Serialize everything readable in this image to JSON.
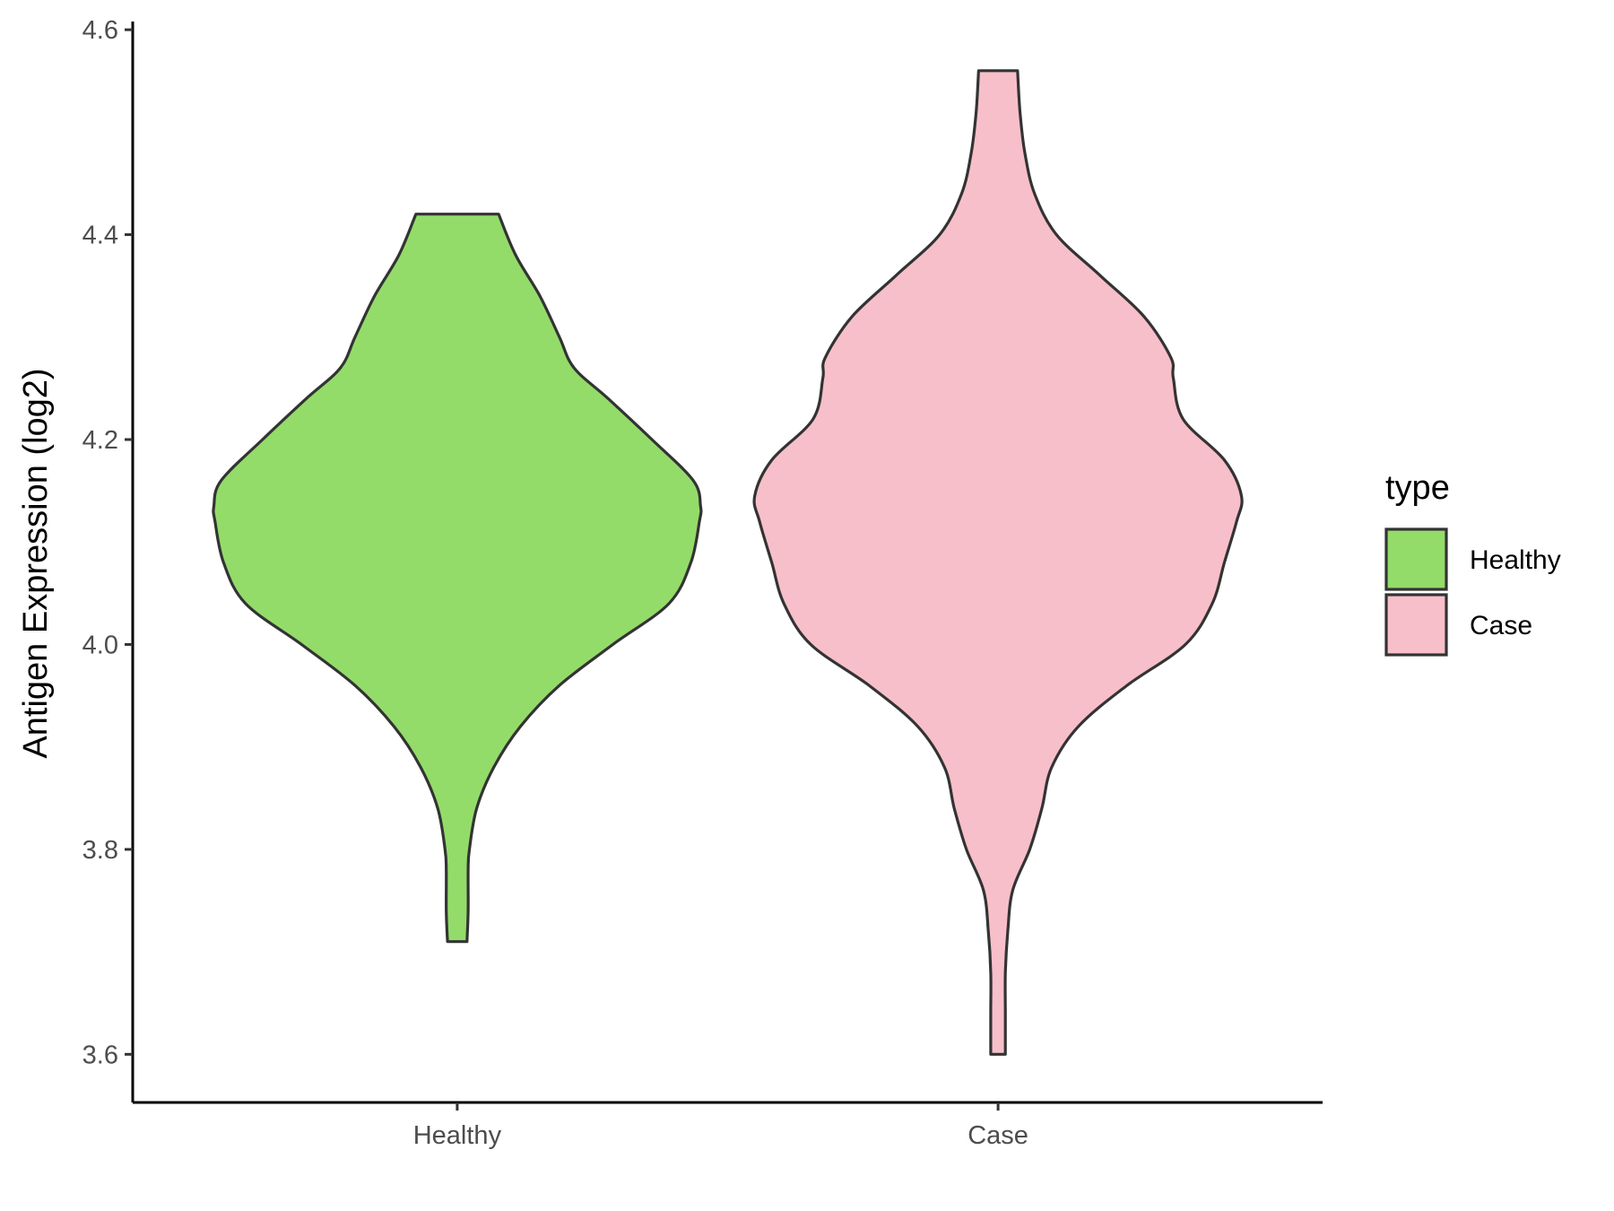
{
  "chart_data": {
    "type": "violin",
    "title": "",
    "xlabel": "",
    "ylabel": "Antigen Expression (log2)",
    "ylim": [
      3.553,
      4.608
    ],
    "yticks": [
      3.6,
      3.8,
      4.0,
      4.2,
      4.4,
      4.6
    ],
    "ytick_labels": [
      "3.6",
      "3.8",
      "4.0",
      "4.2",
      "4.4",
      "4.6"
    ],
    "categories": [
      "Healthy",
      "Case"
    ],
    "grid": false,
    "legend": {
      "title": "type",
      "position": "right",
      "entries": [
        "Healthy",
        "Case"
      ]
    },
    "series": [
      {
        "name": "Healthy",
        "color": "#93dc6a",
        "min": 3.71,
        "max": 4.42,
        "density_profile": [
          [
            3.71,
            0.04
          ],
          [
            3.74,
            0.045
          ],
          [
            3.78,
            0.045
          ],
          [
            3.8,
            0.05
          ],
          [
            3.84,
            0.08
          ],
          [
            3.88,
            0.15
          ],
          [
            3.92,
            0.26
          ],
          [
            3.96,
            0.42
          ],
          [
            4.0,
            0.64
          ],
          [
            4.04,
            0.87
          ],
          [
            4.08,
            0.96
          ],
          [
            4.12,
            0.995
          ],
          [
            4.135,
            1.0
          ],
          [
            4.16,
            0.97
          ],
          [
            4.2,
            0.8
          ],
          [
            4.24,
            0.62
          ],
          [
            4.27,
            0.48
          ],
          [
            4.3,
            0.42
          ],
          [
            4.34,
            0.34
          ],
          [
            4.38,
            0.24
          ],
          [
            4.42,
            0.17
          ]
        ]
      },
      {
        "name": "Case",
        "color": "#f7bfca",
        "min": 3.6,
        "max": 4.56,
        "density_profile": [
          [
            3.6,
            0.03
          ],
          [
            3.64,
            0.03
          ],
          [
            3.68,
            0.03
          ],
          [
            3.72,
            0.04
          ],
          [
            3.76,
            0.06
          ],
          [
            3.8,
            0.13
          ],
          [
            3.84,
            0.18
          ],
          [
            3.88,
            0.22
          ],
          [
            3.92,
            0.33
          ],
          [
            3.96,
            0.53
          ],
          [
            4.0,
            0.77
          ],
          [
            4.04,
            0.88
          ],
          [
            4.08,
            0.93
          ],
          [
            4.12,
            0.98
          ],
          [
            4.145,
            1.0
          ],
          [
            4.18,
            0.93
          ],
          [
            4.22,
            0.76
          ],
          [
            4.26,
            0.72
          ],
          [
            4.28,
            0.71
          ],
          [
            4.32,
            0.6
          ],
          [
            4.36,
            0.42
          ],
          [
            4.4,
            0.24
          ],
          [
            4.44,
            0.15
          ],
          [
            4.48,
            0.11
          ],
          [
            4.52,
            0.09
          ],
          [
            4.56,
            0.08
          ]
        ]
      }
    ]
  }
}
